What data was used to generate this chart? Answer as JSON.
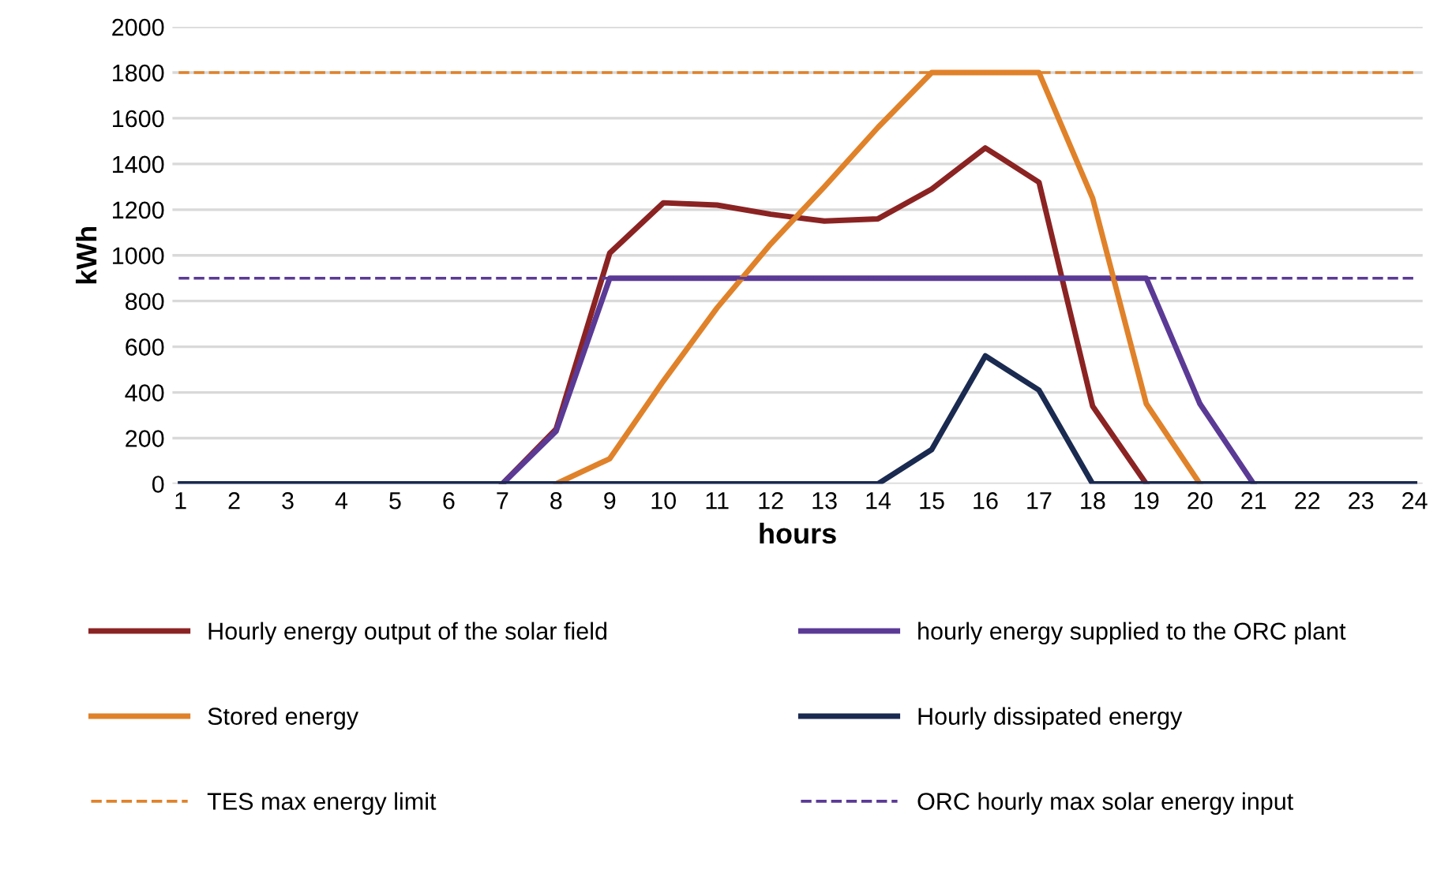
{
  "chart_data": {
    "type": "line",
    "xlabel": "hours",
    "ylabel": "kWh",
    "categories": [
      "1",
      "2",
      "3",
      "4",
      "5",
      "6",
      "7",
      "8",
      "9",
      "10",
      "11",
      "12",
      "13",
      "14",
      "15",
      "16",
      "17",
      "18",
      "19",
      "20",
      "21",
      "22",
      "23",
      "24"
    ],
    "series": [
      {
        "name": "Hourly energy output of the solar field",
        "color": "#8b2323",
        "values": [
          null,
          null,
          null,
          null,
          null,
          null,
          0,
          240,
          1010,
          1230,
          1220,
          1180,
          1150,
          1160,
          1290,
          1470,
          1320,
          340,
          0,
          null,
          null,
          null,
          null,
          null
        ]
      },
      {
        "name": "hourly energy supplied to the ORC plant",
        "color": "#5b3a96",
        "values": [
          null,
          null,
          null,
          null,
          null,
          null,
          0,
          230,
          900,
          900,
          900,
          900,
          900,
          900,
          900,
          900,
          900,
          900,
          900,
          350,
          0,
          null,
          null,
          null
        ]
      },
      {
        "name": "Stored energy",
        "color": "#e0822a",
        "values": [
          null,
          null,
          null,
          null,
          null,
          null,
          null,
          0,
          110,
          450,
          770,
          1050,
          1300,
          1560,
          1800,
          1800,
          1800,
          1250,
          350,
          0,
          null,
          null,
          null,
          null
        ]
      },
      {
        "name": "Hourly dissipated energy",
        "color": "#1a2a50",
        "values": [
          0,
          0,
          0,
          0,
          0,
          0,
          0,
          0,
          0,
          0,
          0,
          0,
          0,
          0,
          150,
          560,
          410,
          0,
          0,
          0,
          0,
          0,
          0,
          0
        ]
      }
    ],
    "ref_lines": [
      {
        "axis": "y",
        "value": 1800,
        "label": "TES max energy limit",
        "color": "#e0822a",
        "line_style": "dashed"
      },
      {
        "axis": "y",
        "value": 900,
        "label": "ORC hourly max solar energy input",
        "color": "#5b3a96",
        "line_style": "dashed"
      }
    ],
    "ylim": [
      0,
      2000
    ],
    "yticks": [
      0,
      200,
      400,
      600,
      800,
      1000,
      1200,
      1400,
      1600,
      1800,
      2000
    ],
    "grid": "y",
    "legend": "bottom",
    "marker": "none",
    "line_style": "solid"
  }
}
